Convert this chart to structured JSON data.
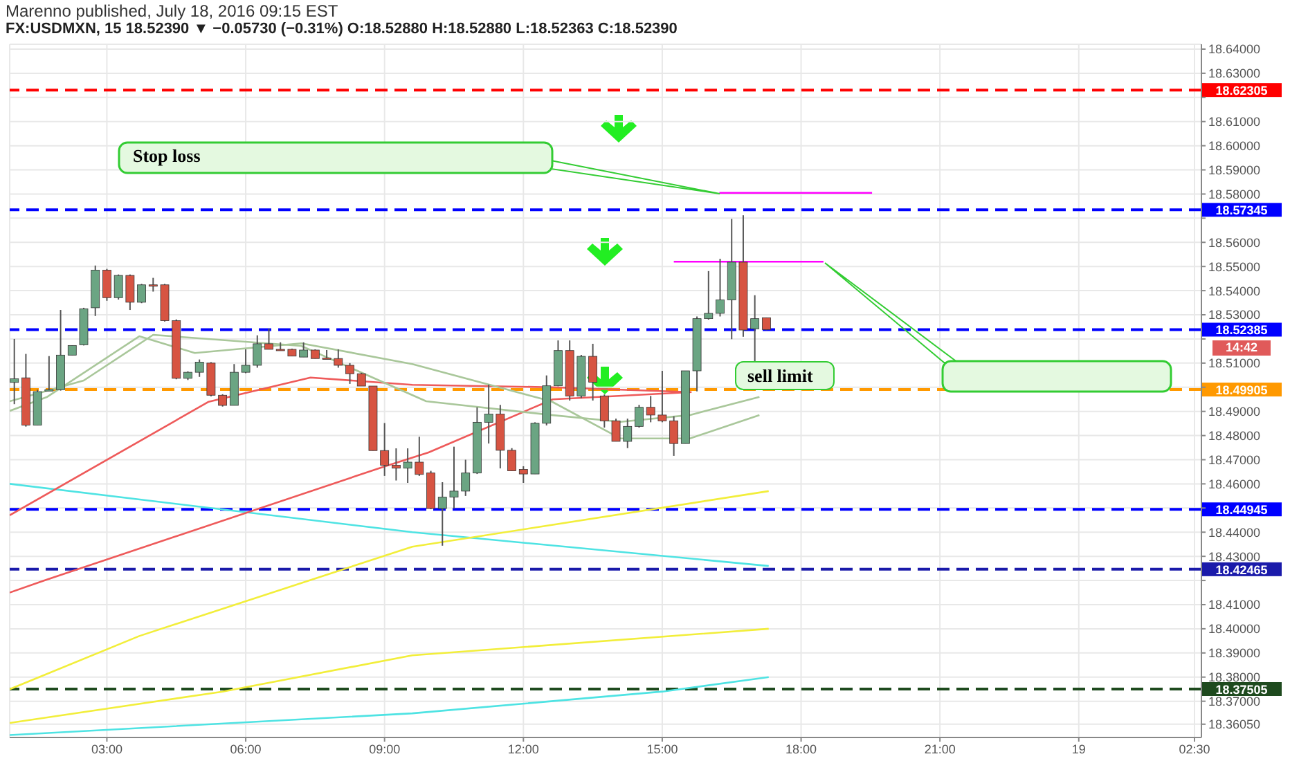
{
  "chart_data": {
    "type": "candlestick",
    "title": "Marenno published, July 18, 2016 09:15 EST",
    "subtitle": "FX:USDMXN, 15 18.52390 ▼ −0.05730 (−0.31%) O:18.52880 H:18.52880 L:18.52363 C:18.52390",
    "x": [
      "2016-07-18T01:00",
      "2016-07-18T01:15",
      "2016-07-18T01:30",
      "2016-07-18T01:45",
      "2016-07-18T02:00",
      "2016-07-18T02:15",
      "2016-07-18T02:30",
      "2016-07-18T02:45",
      "2016-07-18T03:00",
      "2016-07-18T03:15",
      "2016-07-18T03:30",
      "2016-07-18T03:45",
      "2016-07-18T04:00",
      "2016-07-18T04:15",
      "2016-07-18T04:30",
      "2016-07-18T04:45",
      "2016-07-18T05:00",
      "2016-07-18T05:15",
      "2016-07-18T05:30",
      "2016-07-18T05:45",
      "2016-07-18T06:00",
      "2016-07-18T06:15",
      "2016-07-18T06:30",
      "2016-07-18T06:45",
      "2016-07-18T07:00",
      "2016-07-18T07:15",
      "2016-07-18T07:30",
      "2016-07-18T07:45",
      "2016-07-18T08:00",
      "2016-07-18T08:15",
      "2016-07-18T08:30",
      "2016-07-18T08:45",
      "2016-07-18T09:00",
      "2016-07-18T09:15",
      "2016-07-18T09:30",
      "2016-07-18T09:45",
      "2016-07-18T10:00",
      "2016-07-18T10:15",
      "2016-07-18T10:30",
      "2016-07-18T10:45",
      "2016-07-18T11:00",
      "2016-07-18T11:15",
      "2016-07-18T11:30",
      "2016-07-18T11:45",
      "2016-07-18T12:00",
      "2016-07-18T12:15",
      "2016-07-18T12:30",
      "2016-07-18T12:45",
      "2016-07-18T13:00",
      "2016-07-18T13:15",
      "2016-07-18T13:30",
      "2016-07-18T13:45",
      "2016-07-18T14:00",
      "2016-07-18T14:15",
      "2016-07-18T14:30",
      "2016-07-18T14:45",
      "2016-07-18T15:00",
      "2016-07-18T15:15",
      "2016-07-18T15:30",
      "2016-07-18T15:45",
      "2016-07-18T16:00",
      "2016-07-18T16:15",
      "2016-07-18T16:30",
      "2016-07-18T16:45",
      "2016-07-18T17:00",
      "2016-07-18T17:15"
    ],
    "ohlc": [
      [
        18.502,
        18.52,
        18.493,
        18.5035
      ],
      [
        18.5039,
        18.5138,
        18.4837,
        18.4843
      ],
      [
        18.4843,
        18.499,
        18.4843,
        18.4982
      ],
      [
        18.4986,
        18.5129,
        18.4986,
        18.499
      ],
      [
        18.499,
        18.532,
        18.4986,
        18.5133
      ],
      [
        18.5133,
        18.5173,
        18.5133,
        18.5173
      ],
      [
        18.5176,
        18.5329,
        18.5173,
        18.5325
      ],
      [
        18.5329,
        18.5504,
        18.5295,
        18.5485
      ],
      [
        18.5485,
        18.549,
        18.5358,
        18.5371
      ],
      [
        18.5371,
        18.5467,
        18.5363,
        18.5463
      ],
      [
        18.5463,
        18.5467,
        18.532,
        18.5352
      ],
      [
        18.5352,
        18.5428,
        18.5348,
        18.5424
      ],
      [
        18.5424,
        18.5453,
        18.5396,
        18.542
      ],
      [
        18.5424,
        18.5428,
        18.5272,
        18.5276
      ],
      [
        18.5276,
        18.5281,
        18.5033,
        18.5037
      ],
      [
        18.5037,
        18.5066,
        18.503,
        18.5062
      ],
      [
        18.5062,
        18.5115,
        18.5043,
        18.5104
      ],
      [
        18.51,
        18.5104,
        18.4962,
        18.4967
      ],
      [
        18.4967,
        18.4971,
        18.492,
        18.4925
      ],
      [
        18.4925,
        18.5096,
        18.4925,
        18.5062
      ],
      [
        18.5062,
        18.5157,
        18.5058,
        18.5091
      ],
      [
        18.5091,
        18.5215,
        18.5081,
        18.518
      ],
      [
        18.518,
        18.5243,
        18.5157,
        18.5157
      ],
      [
        18.5157,
        18.5186,
        18.5152,
        18.5155
      ],
      [
        18.5157,
        18.516,
        18.5129,
        18.5129
      ],
      [
        18.5125,
        18.5186,
        18.5125,
        18.5154
      ],
      [
        18.5154,
        18.5157,
        18.5119,
        18.5119
      ],
      [
        18.5121,
        18.5154,
        18.5119,
        18.512
      ],
      [
        18.5119,
        18.5157,
        18.5081,
        18.5091
      ],
      [
        18.5091,
        18.51,
        18.5014,
        18.5056
      ],
      [
        18.5056,
        18.506,
        18.5005,
        18.5005
      ],
      [
        18.5005,
        18.5005,
        18.4738,
        18.4738
      ],
      [
        18.4738,
        18.4852,
        18.4633,
        18.4677
      ],
      [
        18.4677,
        18.4747,
        18.4614,
        18.4665
      ],
      [
        18.4665,
        18.4747,
        18.4604,
        18.469
      ],
      [
        18.469,
        18.4795,
        18.4633,
        18.4639
      ],
      [
        18.4645,
        18.4654,
        18.4495,
        18.4498
      ],
      [
        18.4498,
        18.4607,
        18.4344,
        18.4545
      ],
      [
        18.4545,
        18.4754,
        18.4498,
        18.457
      ],
      [
        18.457,
        18.47,
        18.455,
        18.4645
      ],
      [
        18.4645,
        18.4917,
        18.4641,
        18.4855
      ],
      [
        18.4855,
        18.5011,
        18.4767,
        18.4889
      ],
      [
        18.4889,
        18.4927,
        18.4664,
        18.4739
      ],
      [
        18.4739,
        18.4748,
        18.4654,
        18.4654
      ],
      [
        18.466,
        18.4673,
        18.4604,
        18.4641
      ],
      [
        18.4641,
        18.4855,
        18.4641,
        18.4851
      ],
      [
        18.4851,
        18.5049,
        18.4842,
        18.5006
      ],
      [
        18.5006,
        18.5194,
        18.5004,
        18.5152
      ],
      [
        18.5152,
        18.5194,
        18.4945,
        18.4964
      ],
      [
        18.4964,
        18.5134,
        18.4955,
        18.5128
      ],
      [
        18.5128,
        18.518,
        18.4945,
        18.5021
      ],
      [
        18.4964,
        18.497,
        18.4833,
        18.4861
      ],
      [
        18.4861,
        18.487,
        18.4776,
        18.4776
      ],
      [
        18.4776,
        18.487,
        18.4748,
        18.4838
      ],
      [
        18.4838,
        18.4927,
        18.4833,
        18.4917
      ],
      [
        18.4917,
        18.4964,
        18.4855,
        18.4885
      ],
      [
        18.4885,
        18.5068,
        18.4855,
        18.4861
      ],
      [
        18.4861,
        18.488,
        18.4716,
        18.4767
      ],
      [
        18.4767,
        18.5068,
        18.4767,
        18.5068
      ],
      [
        18.5068,
        18.5293,
        18.4983,
        18.5284
      ],
      [
        18.5284,
        18.5481,
        18.528,
        18.5306
      ],
      [
        18.5306,
        18.5532,
        18.5293,
        18.5362
      ],
      [
        18.5362,
        18.5697,
        18.5199,
        18.5518
      ],
      [
        18.5518,
        18.5712,
        18.5209,
        18.5237
      ],
      [
        18.5242,
        18.5381,
        18.5105,
        18.5284
      ],
      [
        18.5288,
        18.5288,
        18.52363,
        18.5239
      ]
    ],
    "series": [
      {
        "type": "line",
        "color": "#4ee3e3",
        "x": [
          "2016-07-18T00:54",
          "2016-07-18T09:36",
          "2016-07-18T17:18"
        ],
        "values": [
          18.46,
          18.44,
          18.426
        ]
      },
      {
        "type": "line",
        "color": "#4ee3e3",
        "x": [
          "2016-07-18T00:54",
          "2016-07-18T09:36",
          "2016-07-18T15:00",
          "2016-07-18T17:18"
        ],
        "values": [
          18.356,
          18.365,
          18.374,
          18.38
        ]
      },
      {
        "type": "line",
        "color": "#f2ee3a",
        "x": [
          "2016-07-18T00:54",
          "2016-07-18T03:42",
          "2016-07-18T09:36",
          "2016-07-18T17:18"
        ],
        "values": [
          18.375,
          18.397,
          18.434,
          18.457
        ]
      },
      {
        "type": "line",
        "color": "#f2ee3a",
        "x": [
          "2016-07-18T00:54",
          "2016-07-18T05:30",
          "2016-07-18T09:36",
          "2016-07-18T17:18"
        ],
        "values": [
          18.361,
          18.374,
          18.389,
          18.4
        ]
      },
      {
        "type": "line",
        "color": "#ee5a5a",
        "x": [
          "2016-07-18T00:54",
          "2016-07-18T01:39",
          "2016-07-18T08:58",
          "2016-07-18T09:57",
          "2016-07-18T12:38",
          "2016-07-18T15:38"
        ],
        "values": [
          18.415,
          18.42,
          18.467,
          18.473,
          18.495,
          18.498
        ]
      },
      {
        "type": "line",
        "color": "#ee5a5a",
        "x": [
          "2016-07-18T00:54",
          "2016-07-18T05:12",
          "2016-07-18T07:24",
          "2016-07-18T09:36",
          "2016-07-18T12:36",
          "2016-07-18T15:36"
        ],
        "values": [
          18.447,
          18.494,
          18.504,
          18.501,
          18.5,
          18.498
        ]
      },
      {
        "type": "line",
        "color": "#a9c79a",
        "x": [
          "2016-07-18T00:54",
          "2016-07-18T01:42",
          "2016-07-18T03:42",
          "2016-07-18T04:54",
          "2016-07-18T07:12",
          "2016-07-18T09:36",
          "2016-07-18T12:36",
          "2016-07-18T14:06",
          "2016-07-18T15:36",
          "2016-07-18T17:06"
        ],
        "values": [
          18.4902,
          18.4959,
          18.5211,
          18.5142,
          18.5182,
          18.5096,
          18.4942,
          18.4788,
          18.4788,
          18.4885
        ]
      },
      {
        "type": "line",
        "color": "#a9c79a",
        "x": [
          "2016-07-18T00:54",
          "2016-07-18T02:30",
          "2016-07-18T04:00",
          "2016-07-18T07:12",
          "2016-07-18T09:54",
          "2016-07-18T12:36",
          "2016-07-18T14:06",
          "2016-07-18T15:36",
          "2016-07-18T17:06"
        ],
        "values": [
          18.4942,
          18.5028,
          18.5217,
          18.5171,
          18.4942,
          18.4885,
          18.4857,
          18.4885,
          18.496
        ]
      },
      {
        "type": "line",
        "color": "#ff00ff",
        "x": [
          "2016-07-18T16:14",
          "2016-07-18T19:32"
        ],
        "values": [
          18.5805,
          18.5805
        ]
      },
      {
        "type": "line",
        "color": "#ff00ff",
        "x": [
          "2016-07-18T15:15",
          "2016-07-18T18:29"
        ],
        "values": [
          18.552,
          18.552
        ]
      }
    ],
    "ref_lines": [
      {
        "axis": "y",
        "value": 18.62305,
        "label": "18.62305",
        "color": "#ff0000",
        "line_style": "dashed"
      },
      {
        "axis": "y",
        "value": 18.57345,
        "label": "18.57345",
        "color": "#0000ff",
        "line_style": "dashed"
      },
      {
        "axis": "y",
        "value": 18.52385,
        "label": "18.52385",
        "color": "#0000ff",
        "line_style": "dashed"
      },
      {
        "axis": "y",
        "value": 18.49905,
        "label": "18.49905",
        "color": "#ff9900",
        "line_style": "dashed"
      },
      {
        "axis": "y",
        "value": 18.44945,
        "label": "18.44945",
        "color": "#0000ff",
        "line_style": "dashed"
      },
      {
        "axis": "y",
        "value": 18.42465,
        "label": "18.42465",
        "color": "#1a1aaa",
        "line_style": "dashed"
      },
      {
        "axis": "y",
        "value": 18.37505,
        "label": "18.37505",
        "color": "#1e4a1e",
        "line_style": "dashed"
      }
    ],
    "annotations": [
      "Stop loss",
      "sell limit",
      "14:42"
    ],
    "xlim": [
      "2016-07-18T00:54",
      "2016-07-19T02:39"
    ],
    "ylim": [
      18.355,
      18.642
    ],
    "xticks": [
      {
        "value": "2016-07-18T03:00",
        "label": "03:00"
      },
      {
        "value": "2016-07-18T06:00",
        "label": "06:00"
      },
      {
        "value": "2016-07-18T09:00",
        "label": "09:00"
      },
      {
        "value": "2016-07-18T12:00",
        "label": "12:00"
      },
      {
        "value": "2016-07-18T15:00",
        "label": "15:00"
      },
      {
        "value": "2016-07-18T18:00",
        "label": "18:00"
      },
      {
        "value": "2016-07-18T21:00",
        "label": "21:00"
      },
      {
        "value": "2016-07-19T00:00",
        "label": "19"
      },
      {
        "value": "2016-07-19T02:30",
        "label": "02:30"
      }
    ],
    "yticks": [
      {
        "value": 18.3605,
        "label": "18.36050"
      },
      {
        "value": 18.37,
        "label": "18.37000"
      },
      {
        "value": 18.38,
        "label": "18.38000"
      },
      {
        "value": 18.39,
        "label": "18.39000"
      },
      {
        "value": 18.4,
        "label": "18.40000"
      },
      {
        "value": 18.41,
        "label": "18.41000"
      },
      {
        "value": 18.42,
        "label": null
      },
      {
        "value": 18.43,
        "label": "18.43000"
      },
      {
        "value": 18.44,
        "label": "18.44000"
      },
      {
        "value": 18.45,
        "label": null
      },
      {
        "value": 18.46,
        "label": "18.46000"
      },
      {
        "value": 18.47,
        "label": "18.47000"
      },
      {
        "value": 18.48,
        "label": "18.48000"
      },
      {
        "value": 18.49,
        "label": "18.49000"
      },
      {
        "value": 18.5,
        "label": null
      },
      {
        "value": 18.51,
        "label": "18.51000"
      },
      {
        "value": 18.52,
        "label": null
      },
      {
        "value": 18.53,
        "label": "18.53000"
      },
      {
        "value": 18.54,
        "label": "18.54000"
      },
      {
        "value": 18.55,
        "label": "18.55000"
      },
      {
        "value": 18.56,
        "label": "18.56000"
      },
      {
        "value": 18.57,
        "label": null
      },
      {
        "value": 18.58,
        "label": "18.58000"
      },
      {
        "value": 18.59,
        "label": "18.59000"
      },
      {
        "value": 18.6,
        "label": "18.60000"
      },
      {
        "value": 18.61,
        "label": "18.61000"
      },
      {
        "value": 18.62,
        "label": null
      },
      {
        "value": 18.63,
        "label": "18.63000"
      },
      {
        "value": 18.64,
        "label": "18.64000"
      }
    ],
    "grid": true,
    "marker": "none"
  }
}
